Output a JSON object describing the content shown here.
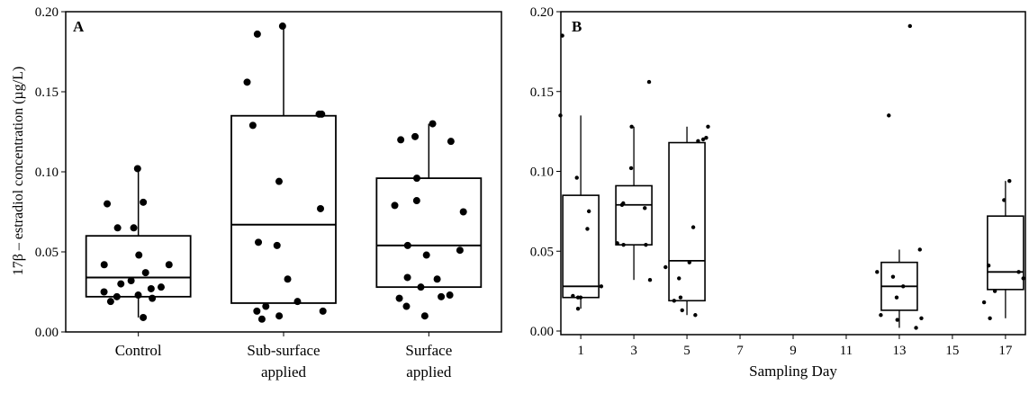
{
  "figure": {
    "ylabel": "17β – estradiol concentration (µg/L)"
  },
  "chart_data": [
    {
      "type": "box",
      "panel_label": "A",
      "xlabel": "",
      "ylabel": "17β – estradiol concentration (µg/L)",
      "ylim": [
        0,
        0.2
      ],
      "yticks": [
        "0.00",
        "0.05",
        "0.10",
        "0.15",
        "0.20"
      ],
      "grid": false,
      "categories": [
        {
          "lines": [
            "Control"
          ]
        },
        {
          "lines": [
            "Sub-surface",
            "applied"
          ]
        },
        {
          "lines": [
            "Surface",
            "applied"
          ]
        }
      ],
      "boxes": [
        {
          "min": 0.009,
          "q1": 0.022,
          "median": 0.034,
          "q3": 0.06,
          "max": 0.102
        },
        {
          "min": 0.018,
          "q1": 0.018,
          "median": 0.067,
          "q3": 0.135,
          "max": 0.191
        },
        {
          "min": 0.028,
          "q1": 0.028,
          "median": 0.054,
          "q3": 0.096,
          "max": 0.13
        }
      ],
      "points": [
        [
          0.102,
          0.081,
          0.08,
          0.065,
          0.065,
          0.048,
          0.042,
          0.042,
          0.037,
          0.032,
          0.03,
          0.028,
          0.027,
          0.025,
          0.023,
          0.022,
          0.021,
          0.019,
          0.009
        ],
        [
          0.191,
          0.186,
          0.156,
          0.136,
          0.136,
          0.129,
          0.094,
          0.077,
          0.056,
          0.054,
          0.033,
          0.019,
          0.016,
          0.013,
          0.013,
          0.01,
          0.008
        ],
        [
          0.13,
          0.122,
          0.12,
          0.119,
          0.096,
          0.082,
          0.079,
          0.075,
          0.054,
          0.051,
          0.048,
          0.034,
          0.033,
          0.028,
          0.023,
          0.022,
          0.021,
          0.016,
          0.01
        ]
      ]
    },
    {
      "type": "box",
      "panel_label": "B",
      "xlabel": "Sampling Day",
      "ylabel": "",
      "ylim": [
        0,
        0.2
      ],
      "xlim": [
        0.25,
        17.75
      ],
      "yticks": [
        "0.00",
        "0.05",
        "0.10",
        "0.15",
        "0.20"
      ],
      "xticks": [
        1,
        3,
        5,
        7,
        9,
        11,
        13,
        15,
        17
      ],
      "grid": false,
      "boxes": [
        {
          "day": 1,
          "min": 0.014,
          "q1": 0.021,
          "median": 0.028,
          "q3": 0.085,
          "max": 0.135
        },
        {
          "day": 3,
          "min": 0.032,
          "q1": 0.054,
          "median": 0.079,
          "q3": 0.091,
          "max": 0.128
        },
        {
          "day": 5,
          "min": 0.01,
          "q1": 0.019,
          "median": 0.044,
          "q3": 0.118,
          "max": 0.128
        },
        {
          "day": 13,
          "min": 0.002,
          "q1": 0.013,
          "median": 0.028,
          "q3": 0.043,
          "max": 0.051
        },
        {
          "day": 17,
          "min": 0.008,
          "q1": 0.026,
          "median": 0.037,
          "q3": 0.072,
          "max": 0.094
        }
      ],
      "points": [
        {
          "day": 1,
          "values": [
            0.185,
            0.135,
            0.096,
            0.075,
            0.064,
            0.028,
            0.022,
            0.021,
            0.021,
            0.014
          ]
        },
        {
          "day": 3,
          "values": [
            0.156,
            0.128,
            0.102,
            0.08,
            0.079,
            0.077,
            0.055,
            0.054,
            0.054,
            0.032
          ]
        },
        {
          "day": 5,
          "values": [
            0.128,
            0.121,
            0.12,
            0.119,
            0.065,
            0.043,
            0.04,
            0.033,
            0.021,
            0.019,
            0.013,
            0.01
          ]
        },
        {
          "day": 13,
          "values": [
            0.191,
            0.135,
            0.051,
            0.037,
            0.034,
            0.028,
            0.021,
            0.01,
            0.008,
            0.007,
            0.002
          ]
        },
        {
          "day": 17,
          "values": [
            0.094,
            0.082,
            0.041,
            0.037,
            0.033,
            0.025,
            0.018,
            0.008
          ]
        }
      ]
    }
  ]
}
